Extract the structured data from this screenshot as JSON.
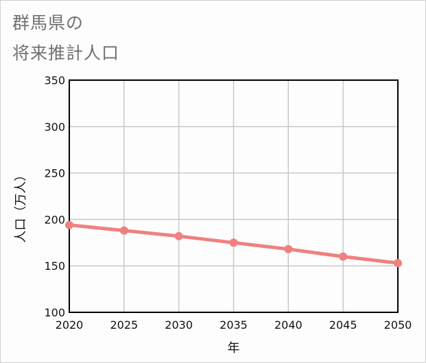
{
  "title_line1": "群馬県の",
  "title_line2": "将来推計人口",
  "chart_data": {
    "type": "line",
    "title": "群馬県の将来推計人口",
    "xlabel": "年",
    "ylabel": "人口（万人）",
    "x": [
      2020,
      2025,
      2030,
      2035,
      2040,
      2045,
      2050
    ],
    "x_ticks": [
      "2020",
      "2025",
      "2030",
      "2035",
      "2040",
      "2045",
      "2050"
    ],
    "y_ticks": [
      "100",
      "150",
      "200",
      "250",
      "300",
      "350"
    ],
    "ylim": [
      100,
      350
    ],
    "xlim": [
      2020,
      2050
    ],
    "grid": true,
    "series": [
      {
        "name": "人口",
        "color": "#f08080",
        "values": [
          194,
          188,
          182,
          175,
          168,
          160,
          153
        ]
      }
    ]
  }
}
